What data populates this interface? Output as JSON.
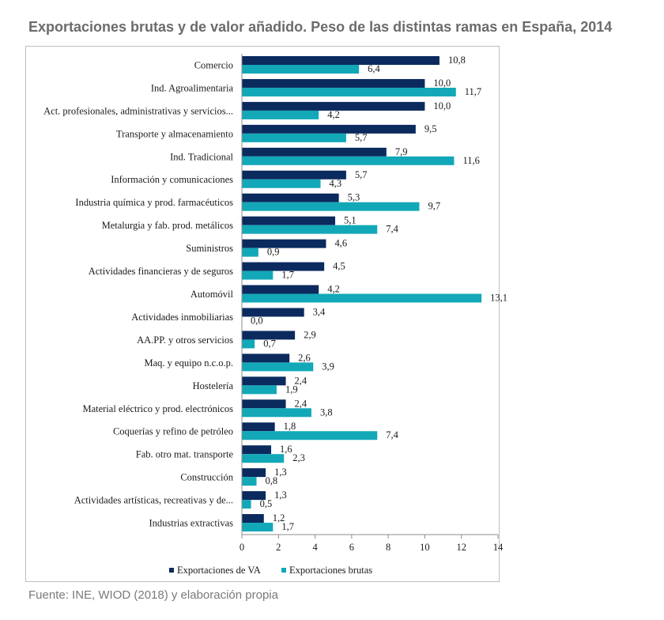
{
  "title": "Exportaciones brutas y de valor añadido. Peso de las distintas ramas en España, 2014",
  "source": "Fuente: INE, WIOD (2018) y elaboración propia",
  "colors": {
    "va": "#0b2a5e",
    "brutas": "#12a8b8"
  },
  "chart_data": {
    "type": "bar",
    "orientation": "horizontal",
    "categories": [
      "Comercio",
      "Ind. Agroalimentaria",
      "Act. profesionales, administrativas y servicios...",
      "Transporte y almacenamiento",
      "Ind. Tradicional",
      "Información y comunicaciones",
      "Industria química y prod. farmacéuticos",
      "Metalurgia y fab. prod. metálicos",
      "Suministros",
      "Actividades financieras y de seguros",
      "Automóvil",
      "Actividades inmobiliarias",
      "AA.PP. y otros servicios",
      "Maq. y equipo n.c.o.p.",
      "Hostelería",
      "Material eléctrico y prod. electrónicos",
      "Coquerías y refino de petróleo",
      "Fab. otro mat. transporte",
      "Construcción",
      "Actividades artísticas, recreativas y de...",
      "Industrias extractivas"
    ],
    "series": [
      {
        "name": "Exportaciones de VA",
        "values": [
          10.8,
          10.0,
          10.0,
          9.5,
          7.9,
          5.7,
          5.3,
          5.1,
          4.6,
          4.5,
          4.2,
          3.4,
          2.9,
          2.6,
          2.4,
          2.4,
          1.8,
          1.6,
          1.3,
          1.3,
          1.2
        ],
        "labels": [
          "10,8",
          "10,0",
          "10,0",
          "9,5",
          "7,9",
          "5,7",
          "5,3",
          "5,1",
          "4,6",
          "4,5",
          "4,2",
          "3,4",
          "2,9",
          "2,6",
          "2,4",
          "2,4",
          "1,8",
          "1,6",
          "1,3",
          "1,3",
          "1,2"
        ]
      },
      {
        "name": "Exportaciones brutas",
        "values": [
          6.4,
          11.7,
          4.2,
          5.7,
          11.6,
          4.3,
          9.7,
          7.4,
          0.9,
          1.7,
          13.1,
          0.0,
          0.7,
          3.9,
          1.9,
          3.8,
          7.4,
          2.3,
          0.8,
          0.5,
          1.7
        ],
        "labels": [
          "6,4",
          "11,7",
          "4,2",
          "5,7",
          "11,6",
          "4,3",
          "9,7",
          "7,4",
          "0,9",
          "1,7",
          "13,1",
          "0,0",
          "0,7",
          "3,9",
          "1,9",
          "3,8",
          "7,4",
          "2,3",
          "0,8",
          "0,5",
          "1,7"
        ]
      }
    ],
    "xlim": [
      0,
      14
    ],
    "xticks": [
      "0",
      "2",
      "4",
      "6",
      "8",
      "10",
      "12",
      "14"
    ],
    "grid": false,
    "legend_position": "bottom"
  }
}
